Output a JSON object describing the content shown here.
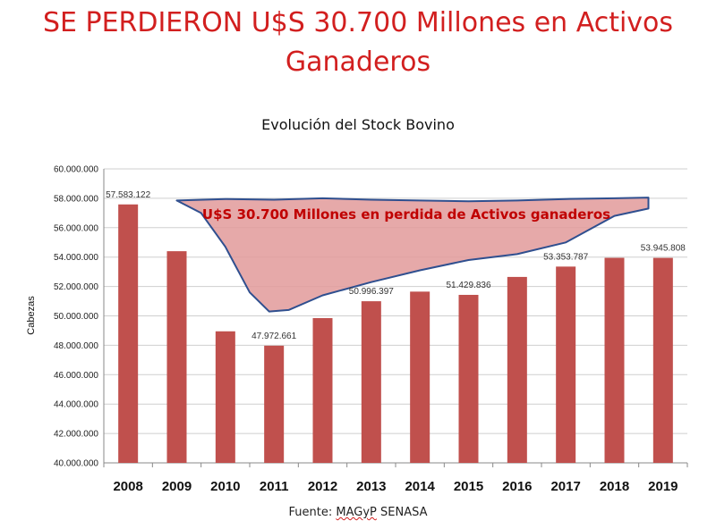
{
  "headline": {
    "line1": "SE PERDIERON U$S 30.700 Millones en Activos",
    "line2": "Ganaderos"
  },
  "source": {
    "prefix": "Fuente: ",
    "org1": "MAGyP",
    "org2": " SENASA"
  },
  "colors": {
    "headline": "#d21f1f",
    "bar": "#c0504d",
    "area_fill": "#e29a9a",
    "area_stroke": "#2f4f8f"
  },
  "chart_data": {
    "type": "bar",
    "title": "Evolución del Stock Bovino",
    "xlabel": "",
    "ylabel": "Cabezas",
    "ylim": [
      40000000,
      60000000
    ],
    "yticks": [
      40000000,
      42000000,
      44000000,
      46000000,
      48000000,
      50000000,
      52000000,
      54000000,
      56000000,
      58000000,
      60000000
    ],
    "ytick_labels": [
      "40.000.000",
      "42.000.000",
      "44.000.000",
      "46.000.000",
      "48.000.000",
      "50.000.000",
      "52.000.000",
      "54.000.000",
      "56.000.000",
      "58.000.000",
      "60.000.000"
    ],
    "categories": [
      "2008",
      "2009",
      "2010",
      "2011",
      "2012",
      "2013",
      "2014",
      "2015",
      "2016",
      "2017",
      "2018",
      "2019"
    ],
    "values": [
      57583122,
      54400000,
      48950000,
      47972661,
      49850000,
      50996397,
      51650000,
      51429836,
      52650000,
      53353787,
      53950000,
      53945808
    ],
    "data_labels": [
      {
        "index": 0,
        "text": "57.583.122"
      },
      {
        "index": 3,
        "text": "47.972.661"
      },
      {
        "index": 5,
        "text": "50.996.397"
      },
      {
        "index": 7,
        "text": "51.429.836"
      },
      {
        "index": 9,
        "text": "53.353.787"
      },
      {
        "index": 11,
        "text": "53.945.808"
      }
    ],
    "annotation": {
      "text": "U$S 30.700 Millones en perdida de Activos ganaderos",
      "upper_boundary": [
        {
          "x": 1,
          "y": 57850000
        },
        {
          "x": 2,
          "y": 57950000
        },
        {
          "x": 3,
          "y": 57900000
        },
        {
          "x": 4,
          "y": 58000000
        },
        {
          "x": 5,
          "y": 57900000
        },
        {
          "x": 6,
          "y": 57850000
        },
        {
          "x": 7,
          "y": 57800000
        },
        {
          "x": 8,
          "y": 57850000
        },
        {
          "x": 9,
          "y": 57950000
        },
        {
          "x": 10,
          "y": 58000000
        },
        {
          "x": 10.7,
          "y": 58050000
        }
      ],
      "lower_boundary": [
        {
          "x": 10.7,
          "y": 57300000
        },
        {
          "x": 10,
          "y": 56800000
        },
        {
          "x": 9,
          "y": 55000000
        },
        {
          "x": 8,
          "y": 54200000
        },
        {
          "x": 7,
          "y": 53800000
        },
        {
          "x": 6,
          "y": 53100000
        },
        {
          "x": 5,
          "y": 52300000
        },
        {
          "x": 4,
          "y": 51400000
        },
        {
          "x": 3.3,
          "y": 50400000
        },
        {
          "x": 2.9,
          "y": 50300000
        },
        {
          "x": 2.5,
          "y": 51600000
        },
        {
          "x": 2,
          "y": 54700000
        },
        {
          "x": 1.5,
          "y": 57000000
        },
        {
          "x": 1,
          "y": 57850000
        }
      ]
    }
  }
}
